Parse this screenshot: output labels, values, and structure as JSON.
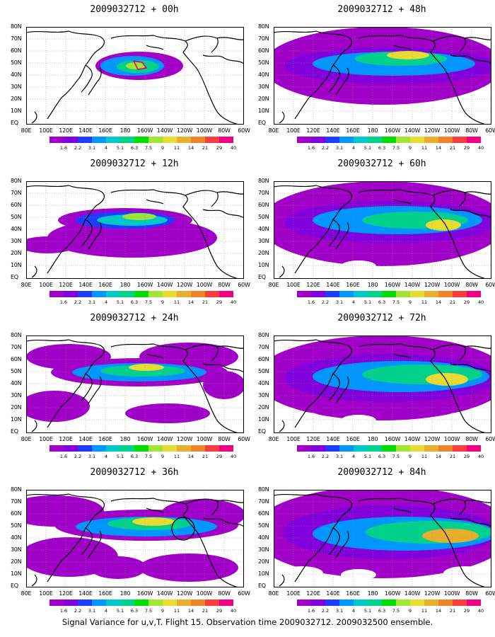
{
  "panels": [
    {
      "title": "2009032712 + 00h",
      "stage": 0
    },
    {
      "title": "2009032712 + 48h",
      "stage": 4
    },
    {
      "title": "2009032712 + 12h",
      "stage": 1
    },
    {
      "title": "2009032712 + 60h",
      "stage": 5
    },
    {
      "title": "2009032712 + 24h",
      "stage": 2
    },
    {
      "title": "2009032712 + 72h",
      "stage": 6
    },
    {
      "title": "2009032712 + 36h",
      "stage": 3
    },
    {
      "title": "2009032712 + 84h",
      "stage": 7
    }
  ],
  "y_axis_labels": [
    "80N",
    "70N",
    "60N",
    "50N",
    "40N",
    "30N",
    "20N",
    "10N",
    "EQ"
  ],
  "x_axis_labels": [
    "80E",
    "100E",
    "120E",
    "140E",
    "160E",
    "180",
    "160W",
    "140W",
    "120W",
    "100W",
    "80W",
    "60W"
  ],
  "colorbar_labels": [
    "1.6",
    "2.2",
    "3.1",
    "4",
    "5.1",
    "6.3",
    "7.5",
    "9",
    "11",
    "14",
    "21",
    "29",
    "40"
  ],
  "colorbar_colors": [
    "#a000c8",
    "#8200dc",
    "#1e3cff",
    "#0096ff",
    "#00c8c8",
    "#00d28c",
    "#00dc00",
    "#a0e632",
    "#e6dc32",
    "#e6af2d",
    "#f08228",
    "#fa3c3c",
    "#f00082"
  ],
  "caption": "Signal Variance for u,v,T. Flight 15. Observation time 2009032712. 2009032500 ensemble."
}
